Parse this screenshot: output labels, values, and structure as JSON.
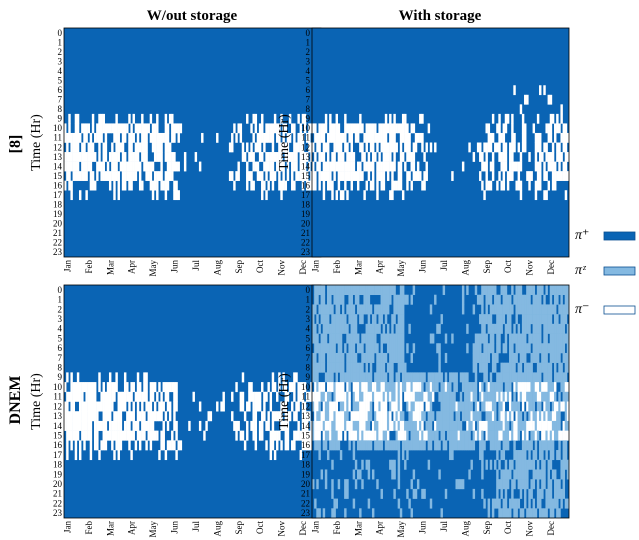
{
  "colors": {
    "pi_plus": "#0a64b4",
    "pi_z": "#84b9e1",
    "pi_minus": "#ffffff",
    "frame": "#000000"
  },
  "columns": [
    "W/out storage",
    "With storage"
  ],
  "rows": [
    "[8]",
    "DNEM"
  ],
  "legend": [
    {
      "label": "π⁺",
      "color": "#0a64b4"
    },
    {
      "label": "πᶻ",
      "color": "#84b9e1"
    },
    {
      "label": "π⁻",
      "color": "#ffffff"
    }
  ],
  "chart_data": [
    {
      "type": "heatmap",
      "id": "ref8-without",
      "column": "W/out storage",
      "row": "[8]",
      "ylabel": "Time (Hr)",
      "y_ticks": [
        "0",
        "1",
        "2",
        "3",
        "4",
        "5",
        "6",
        "7",
        "8",
        "9",
        "10",
        "11",
        "12",
        "13",
        "14",
        "15",
        "16",
        "17",
        "18",
        "19",
        "20",
        "21",
        "22",
        "23"
      ],
      "x_ticks": [
        "Jan",
        "Feb",
        "Mar",
        "Apr",
        "May",
        "Jun",
        "Jul",
        "Aug",
        "Sep",
        "Oct",
        "Nov",
        "Dec"
      ],
      "pattern": {
        "pi_z_zone": false,
        "storage": false
      }
    },
    {
      "type": "heatmap",
      "id": "ref8-with",
      "column": "With storage",
      "row": "[8]",
      "ylabel": "Time (Hr)",
      "y_ticks": [
        "0",
        "1",
        "2",
        "3",
        "4",
        "5",
        "6",
        "7",
        "8",
        "9",
        "10",
        "11",
        "12",
        "13",
        "14",
        "15",
        "16",
        "17",
        "18",
        "19",
        "20",
        "21",
        "22",
        "23"
      ],
      "x_ticks": [
        "Jan",
        "Feb",
        "Mar",
        "Apr",
        "May",
        "Jun",
        "Jul",
        "Aug",
        "Sep",
        "Oct",
        "Nov",
        "Dec"
      ],
      "pattern": {
        "pi_z_zone": false,
        "storage": true
      }
    },
    {
      "type": "heatmap",
      "id": "dnem-without",
      "column": "W/out storage",
      "row": "DNEM",
      "ylabel": "Time (Hr)",
      "y_ticks": [
        "0",
        "1",
        "2",
        "3",
        "4",
        "5",
        "6",
        "7",
        "8",
        "9",
        "10",
        "11",
        "12",
        "13",
        "14",
        "15",
        "16",
        "17",
        "18",
        "19",
        "20",
        "21",
        "22",
        "23"
      ],
      "x_ticks": [
        "Jan",
        "Feb",
        "Mar",
        "Apr",
        "May",
        "Jun",
        "Jul",
        "Aug",
        "Sep",
        "Oct",
        "Nov",
        "Dec"
      ],
      "pattern": {
        "pi_z_zone": false,
        "storage": false
      }
    },
    {
      "type": "heatmap",
      "id": "dnem-with",
      "column": "With storage",
      "row": "DNEM",
      "ylabel": "Time (Hr)",
      "y_ticks": [
        "0",
        "1",
        "2",
        "3",
        "4",
        "5",
        "6",
        "7",
        "8",
        "9",
        "10",
        "11",
        "12",
        "13",
        "14",
        "15",
        "16",
        "17",
        "18",
        "19",
        "20",
        "21",
        "22",
        "23"
      ],
      "x_ticks": [
        "Jan",
        "Feb",
        "Mar",
        "Apr",
        "May",
        "Jun",
        "Jul",
        "Aug",
        "Sep",
        "Oct",
        "Nov",
        "Dec"
      ],
      "pattern": {
        "pi_z_zone": true,
        "storage": true
      }
    }
  ]
}
